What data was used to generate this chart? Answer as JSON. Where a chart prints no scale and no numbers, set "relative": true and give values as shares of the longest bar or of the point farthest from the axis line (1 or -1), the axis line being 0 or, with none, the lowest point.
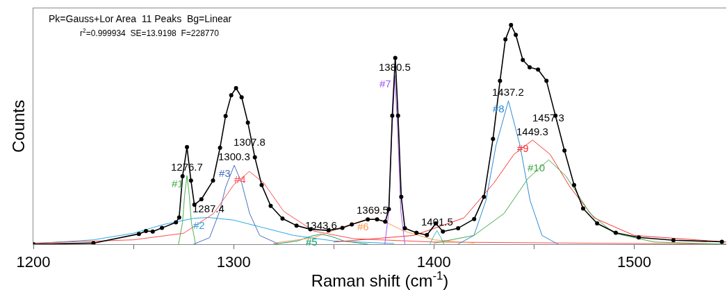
{
  "chart_data": {
    "type": "line",
    "relative": true,
    "xlabel": "Raman shift (cm$^{-1}$)",
    "ylabel": "Counts",
    "xlim": [
      1200,
      1546
    ],
    "xticks": [
      1200,
      {
        "value": 1250,
        "label": null
      },
      1300,
      {
        "value": 1350,
        "label": null
      },
      1400,
      {
        "value": 1450,
        "label": null
      },
      1500
    ],
    "grid": false,
    "legend": false,
    "line_style": "solid",
    "marker": "none",
    "annotations": [
      "Pk=Gauss+Lor Area  11 Peaks  Bg=Linear",
      "r$^{2}$=0.999934  SE=13.9198  F=228770",
      "1276.7",
      "1287.4",
      "1300.3",
      "1307.8",
      "1343.6",
      "1369.5",
      "1380.5",
      "1401.5",
      "1437.2",
      "1449.3",
      "1457.3"
    ],
    "series": [
      {
        "name": "#1",
        "color": "#4caf50",
        "x": [
          1272.5,
          1274.5,
          1275.5,
          1276.7,
          1277.9,
          1278.9,
          1281
        ],
        "values": [
          0,
          0.1,
          0.22,
          0.313,
          0.22,
          0.1,
          0
        ]
      },
      {
        "name": "#2",
        "color": "#29a8e0",
        "x": [
          1200,
          1230,
          1250,
          1265,
          1280,
          1287.4,
          1300,
          1315,
          1330,
          1350,
          1380
        ],
        "values": [
          0.003,
          0.02,
          0.05,
          0.09,
          0.118,
          0.122,
          0.11,
          0.075,
          0.04,
          0.015,
          0.003
        ]
      },
      {
        "name": "#3",
        "color": "#4a6fc0",
        "x": [
          1280,
          1288,
          1293,
          1296,
          1300.3,
          1304,
          1308,
          1313,
          1322
        ],
        "values": [
          0,
          0.03,
          0.15,
          0.26,
          0.36,
          0.28,
          0.14,
          0.04,
          0.003
        ]
      },
      {
        "name": "#4",
        "color": "#ff4a4a",
        "x": [
          1200,
          1250,
          1275,
          1290,
          1300,
          1307.8,
          1315,
          1325,
          1340,
          1360,
          1400,
          1546
        ],
        "values": [
          0.005,
          0.02,
          0.05,
          0.14,
          0.27,
          0.332,
          0.28,
          0.15,
          0.06,
          0.025,
          0.01,
          0
        ]
      },
      {
        "name": "#5",
        "color": "#1aa079",
        "x": [
          1320,
          1332,
          1338,
          1343.6,
          1349,
          1355,
          1367
        ],
        "values": [
          0,
          0.015,
          0.035,
          0.046,
          0.035,
          0.015,
          0
        ]
      },
      {
        "name": "#6",
        "color": "#ff9a50",
        "x": [
          1320,
          1340,
          1355,
          1365,
          1369.5,
          1375,
          1385,
          1400,
          1420
        ],
        "values": [
          0.005,
          0.03,
          0.08,
          0.11,
          0.116,
          0.105,
          0.06,
          0.02,
          0.005
        ]
      },
      {
        "name": "#7",
        "color": "#a05cf0",
        "x": [
          1375.5,
          1377.5,
          1379,
          1380.5,
          1382,
          1383.5,
          1385.5
        ],
        "values": [
          0,
          0.15,
          0.5,
          0.77,
          0.5,
          0.15,
          0
        ]
      },
      {
        "color": "#3bb5aa",
        "x": [
          1398,
          1399.5,
          1401.5,
          1403.5,
          1405
        ],
        "values": [
          0,
          0.03,
          0.062,
          0.03,
          0
        ]
      },
      {
        "name": "#8",
        "color": "#2a8ad6",
        "x": [
          1412,
          1420,
          1426,
          1431,
          1437.2,
          1443,
          1448,
          1454,
          1462
        ],
        "values": [
          0,
          0.04,
          0.2,
          0.45,
          0.654,
          0.45,
          0.2,
          0.04,
          0
        ]
      },
      {
        "name": "#9",
        "color": "#ff3030",
        "x": [
          1350,
          1390,
          1415,
          1430,
          1440,
          1449.3,
          1458,
          1468,
          1480,
          1500,
          1546
        ],
        "values": [
          0.01,
          0.04,
          0.12,
          0.28,
          0.41,
          0.475,
          0.41,
          0.26,
          0.12,
          0.04,
          0.01
        ]
      },
      {
        "name": "#10",
        "color": "#44a84a",
        "x": [
          1400,
          1420,
          1435,
          1447,
          1457.3,
          1466,
          1478,
          1490,
          1510,
          1546
        ],
        "values": [
          0.005,
          0.04,
          0.14,
          0.3,
          0.385,
          0.31,
          0.14,
          0.05,
          0.01,
          0
        ]
      },
      {
        "color": "#000000",
        "marker": "circle",
        "x": [
          1200,
          1230,
          1252.7,
          1256.2,
          1259.6,
          1264.2,
          1271.2,
          1272.8,
          1274.5,
          1276.7,
          1278.7,
          1280.4,
          1283.9,
          1289.7,
          1293.2,
          1296,
          1298.8,
          1301.2,
          1304,
          1307.1,
          1310.6,
          1314,
          1318.5,
          1324.4,
          1331.4,
          1338.3,
          1347.4,
          1354.3,
          1359,
          1367,
          1371.6,
          1375.7,
          1377.5,
          1379.2,
          1380.7,
          1382.1,
          1383.7,
          1385.5,
          1391.3,
          1396.5,
          1401,
          1404.5,
          1412.1,
          1420.1,
          1425,
          1429.5,
          1433,
          1435.7,
          1438.5,
          1440.9,
          1444.4,
          1447.8,
          1452,
          1456.2,
          1460.7,
          1465.2,
          1470,
          1474.5,
          1481.5,
          1490.8,
          1502.3,
          1519.6,
          1543.8
        ],
        "values": [
          0,
          0.005,
          0.047,
          0.06,
          0.058,
          0.074,
          0.1,
          0.122,
          0.31,
          0.443,
          0.29,
          0.18,
          0.205,
          0.29,
          0.44,
          0.585,
          0.68,
          0.712,
          0.67,
          0.555,
          0.396,
          0.27,
          0.175,
          0.117,
          0.085,
          0.068,
          0.063,
          0.074,
          0.09,
          0.113,
          0.113,
          0.103,
          0.16,
          0.586,
          0.85,
          0.586,
          0.216,
          0.073,
          0.052,
          0.042,
          0.095,
          0.058,
          0.073,
          0.115,
          0.216,
          0.48,
          0.745,
          0.934,
          1,
          0.955,
          0.84,
          0.807,
          0.797,
          0.745,
          0.586,
          0.427,
          0.27,
          0.163,
          0.095,
          0.052,
          0.031,
          0.018,
          0.011
        ]
      }
    ]
  }
}
